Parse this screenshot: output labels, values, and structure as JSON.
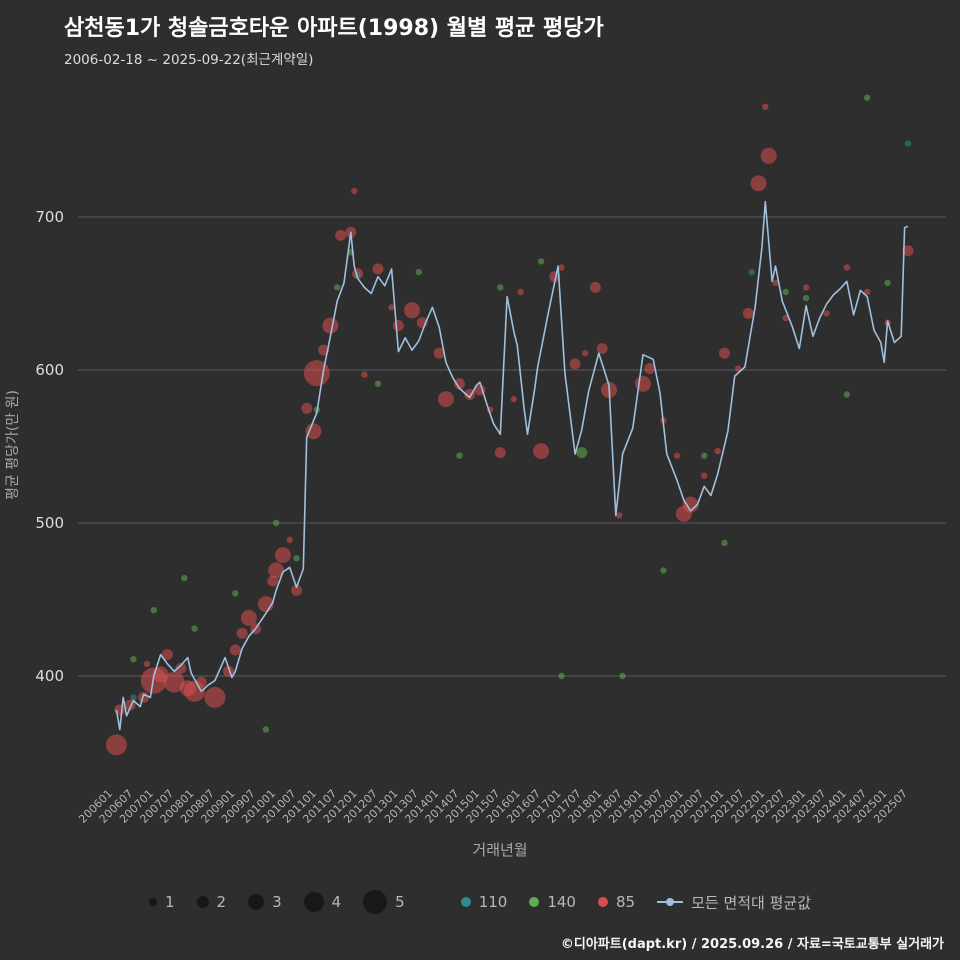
{
  "header": {
    "title": "삼천동1가 청솔금호타운 아파트(1998) 월별 평균 평당가",
    "subtitle": "2006-02-18 ~ 2025-09-22(최근계약일)"
  },
  "footer": {
    "text": "©디아파트(dapt.kr) / 2025.09.26 / 자료=국토교통부 실거래가"
  },
  "legend": {
    "series": [
      {
        "name": "110",
        "label": "110",
        "color": "#2e8b8b",
        "type": "dot"
      },
      {
        "name": "140",
        "label": "140",
        "color": "#5fae4f",
        "type": "dot"
      },
      {
        "name": "85",
        "label": "85",
        "color": "#d94f4f",
        "type": "dot"
      },
      {
        "name": "average",
        "label": "모든 면적대 평균값",
        "color": "#9fc0de",
        "type": "line"
      }
    ]
  },
  "chart_data": {
    "type": "scatter+line",
    "title": "삼천동1가 청솔금호타운 아파트(1998) 월별 평균 평당가",
    "xlabel": "거래년월",
    "ylabel": "평균 평당가(만 원)",
    "ylim": [
      340,
      790
    ],
    "yticks": [
      400,
      500,
      600,
      700
    ],
    "grid": true,
    "size_legend": [
      1,
      2,
      3,
      4,
      5
    ],
    "xticks": [
      "200601",
      "200607",
      "200701",
      "200707",
      "200801",
      "200807",
      "200901",
      "200907",
      "201001",
      "201007",
      "201101",
      "201107",
      "201201",
      "201207",
      "201301",
      "201307",
      "201401",
      "201407",
      "201501",
      "201507",
      "201601",
      "201607",
      "201701",
      "201707",
      "201801",
      "201807",
      "201901",
      "201907",
      "202001",
      "202007",
      "202101",
      "202107",
      "202201",
      "202207",
      "202301",
      "202307",
      "202401",
      "202407",
      "202501",
      "202507"
    ],
    "line_series": {
      "name": "모든 면적대 평균값",
      "color": "#9fc0de",
      "points": [
        [
          "200602",
          378
        ],
        [
          "200603",
          365
        ],
        [
          "200604",
          386
        ],
        [
          "200605",
          374
        ],
        [
          "200607",
          384
        ],
        [
          "200609",
          380
        ],
        [
          "200610",
          388
        ],
        [
          "200612",
          386
        ],
        [
          "200701",
          400
        ],
        [
          "200703",
          414
        ],
        [
          "200705",
          408
        ],
        [
          "200707",
          403
        ],
        [
          "200709",
          407
        ],
        [
          "200711",
          412
        ],
        [
          "200712",
          402
        ],
        [
          "200801",
          398
        ],
        [
          "200803",
          390
        ],
        [
          "200805",
          394
        ],
        [
          "200807",
          397
        ],
        [
          "200810",
          412
        ],
        [
          "200812",
          399
        ],
        [
          "200901",
          403
        ],
        [
          "200903",
          418
        ],
        [
          "200905",
          426
        ],
        [
          "200907",
          431
        ],
        [
          "200910",
          441
        ],
        [
          "200912",
          448
        ],
        [
          "201001",
          456
        ],
        [
          "201003",
          468
        ],
        [
          "201005",
          471
        ],
        [
          "201007",
          458
        ],
        [
          "201009",
          470
        ],
        [
          "201010",
          556
        ],
        [
          "201101",
          572
        ],
        [
          "201103",
          600
        ],
        [
          "201105",
          622
        ],
        [
          "201107",
          645
        ],
        [
          "201109",
          657
        ],
        [
          "201111",
          690
        ],
        [
          "201112",
          668
        ],
        [
          "201201",
          660
        ],
        [
          "201203",
          654
        ],
        [
          "201205",
          650
        ],
        [
          "201207",
          661
        ],
        [
          "201209",
          655
        ],
        [
          "201211",
          666
        ],
        [
          "201301",
          612
        ],
        [
          "201303",
          621
        ],
        [
          "201305",
          613
        ],
        [
          "201307",
          619
        ],
        [
          "201309",
          631
        ],
        [
          "201311",
          641
        ],
        [
          "201401",
          628
        ],
        [
          "201403",
          605
        ],
        [
          "201405",
          595
        ],
        [
          "201407",
          588
        ],
        [
          "201410",
          582
        ],
        [
          "201412",
          590
        ],
        [
          "201501",
          592
        ],
        [
          "201503",
          578
        ],
        [
          "201505",
          565
        ],
        [
          "201507",
          558
        ],
        [
          "201509",
          648
        ],
        [
          "201511",
          625
        ],
        [
          "201512",
          616
        ],
        [
          "201602",
          575
        ],
        [
          "201603",
          558
        ],
        [
          "201605",
          586
        ],
        [
          "201606",
          602
        ],
        [
          "201609",
          636
        ],
        [
          "201612",
          668
        ],
        [
          "201702",
          598
        ],
        [
          "201705",
          545
        ],
        [
          "201707",
          561
        ],
        [
          "201709",
          586
        ],
        [
          "201712",
          611
        ],
        [
          "201803",
          590
        ],
        [
          "201805",
          505
        ],
        [
          "201807",
          545
        ],
        [
          "201810",
          562
        ],
        [
          "201901",
          610
        ],
        [
          "201904",
          607
        ],
        [
          "201906",
          585
        ],
        [
          "201908",
          545
        ],
        [
          "201911",
          528
        ],
        [
          "202001",
          515
        ],
        [
          "202003",
          508
        ],
        [
          "202005",
          512
        ],
        [
          "202007",
          524
        ],
        [
          "202009",
          518
        ],
        [
          "202011",
          532
        ],
        [
          "202102",
          560
        ],
        [
          "202104",
          596
        ],
        [
          "202107",
          602
        ],
        [
          "202110",
          641
        ],
        [
          "202112",
          680
        ],
        [
          "202201",
          710
        ],
        [
          "202203",
          658
        ],
        [
          "202204",
          668
        ],
        [
          "202206",
          645
        ],
        [
          "202209",
          628
        ],
        [
          "202211",
          614
        ],
        [
          "202301",
          642
        ],
        [
          "202303",
          622
        ],
        [
          "202305",
          634
        ],
        [
          "202307",
          643
        ],
        [
          "202309",
          649
        ],
        [
          "202311",
          653
        ],
        [
          "202401",
          658
        ],
        [
          "202403",
          636
        ],
        [
          "202405",
          652
        ],
        [
          "202407",
          648
        ],
        [
          "202409",
          626
        ],
        [
          "202411",
          618
        ],
        [
          "202412",
          605
        ],
        [
          "202501",
          632
        ],
        [
          "202503",
          618
        ],
        [
          "202505",
          622
        ],
        [
          "202506",
          693
        ],
        [
          "202507",
          694
        ]
      ]
    },
    "bubble_series": [
      {
        "name": "85",
        "color": "#d94f4f",
        "points": [
          [
            "200602",
            355,
            4
          ],
          [
            "200603",
            378,
            2
          ],
          [
            "200606",
            381,
            2
          ],
          [
            "200610",
            386,
            2
          ],
          [
            "200611",
            408,
            1
          ],
          [
            "200701",
            397,
            5
          ],
          [
            "200703",
            401,
            3
          ],
          [
            "200705",
            414,
            2
          ],
          [
            "200707",
            396,
            4
          ],
          [
            "200709",
            405,
            2
          ],
          [
            "200711",
            392,
            3
          ],
          [
            "200801",
            390,
            4
          ],
          [
            "200803",
            396,
            2
          ],
          [
            "200807",
            386,
            4
          ],
          [
            "200811",
            403,
            2
          ],
          [
            "200901",
            417,
            2
          ],
          [
            "200903",
            428,
            2
          ],
          [
            "200905",
            438,
            3
          ],
          [
            "200907",
            431,
            2
          ],
          [
            "200910",
            447,
            3
          ],
          [
            "200912",
            462,
            2
          ],
          [
            "201001",
            469,
            3
          ],
          [
            "201003",
            479,
            3
          ],
          [
            "201005",
            489,
            1
          ],
          [
            "201007",
            456,
            2
          ],
          [
            "201010",
            575,
            2
          ],
          [
            "201012",
            560,
            3
          ],
          [
            "201101",
            598,
            5
          ],
          [
            "201103",
            613,
            2
          ],
          [
            "201105",
            629,
            3
          ],
          [
            "201108",
            688,
            2
          ],
          [
            "201111",
            690,
            2
          ],
          [
            "201112",
            717,
            1
          ],
          [
            "201201",
            663,
            2
          ],
          [
            "201203",
            597,
            1
          ],
          [
            "201207",
            666,
            2
          ],
          [
            "201211",
            641,
            1
          ],
          [
            "201301",
            629,
            2
          ],
          [
            "201305",
            639,
            3
          ],
          [
            "201308",
            631,
            2
          ],
          [
            "201401",
            611,
            2
          ],
          [
            "201403",
            581,
            3
          ],
          [
            "201407",
            591,
            2
          ],
          [
            "201410",
            584,
            2
          ],
          [
            "201501",
            587,
            2
          ],
          [
            "201504",
            574,
            1
          ],
          [
            "201507",
            546,
            2
          ],
          [
            "201511",
            581,
            1
          ],
          [
            "201601",
            651,
            1
          ],
          [
            "201607",
            547,
            3
          ],
          [
            "201611",
            661,
            2
          ],
          [
            "201701",
            667,
            1
          ],
          [
            "201705",
            604,
            2
          ],
          [
            "201708",
            611,
            1
          ],
          [
            "201711",
            654,
            2
          ],
          [
            "201801",
            614,
            2
          ],
          [
            "201803",
            587,
            3
          ],
          [
            "201806",
            505,
            1
          ],
          [
            "201901",
            591,
            3
          ],
          [
            "201903",
            601,
            2
          ],
          [
            "201907",
            567,
            1
          ],
          [
            "201911",
            544,
            1
          ],
          [
            "202001",
            506,
            3
          ],
          [
            "202003",
            512,
            3
          ],
          [
            "202007",
            531,
            1
          ],
          [
            "202011",
            547,
            1
          ],
          [
            "202101",
            611,
            2
          ],
          [
            "202105",
            601,
            1
          ],
          [
            "202108",
            637,
            2
          ],
          [
            "202111",
            722,
            3
          ],
          [
            "202201",
            772,
            1
          ],
          [
            "202202",
            740,
            3
          ],
          [
            "202204",
            657,
            1
          ],
          [
            "202207",
            634,
            1
          ],
          [
            "202301",
            654,
            1
          ],
          [
            "202307",
            637,
            1
          ],
          [
            "202401",
            667,
            1
          ],
          [
            "202407",
            651,
            1
          ],
          [
            "202501",
            631,
            1
          ],
          [
            "202507",
            678,
            2
          ]
        ]
      },
      {
        "name": "140",
        "color": "#5fae4f",
        "points": [
          [
            "200607",
            411,
            1
          ],
          [
            "200701",
            443,
            1
          ],
          [
            "200710",
            464,
            1
          ],
          [
            "200801",
            431,
            1
          ],
          [
            "200901",
            454,
            1
          ],
          [
            "200910",
            365,
            1
          ],
          [
            "201001",
            500,
            1
          ],
          [
            "201007",
            477,
            1
          ],
          [
            "201101",
            574,
            1
          ],
          [
            "201107",
            654,
            1
          ],
          [
            "201111",
            677,
            1
          ],
          [
            "201207",
            591,
            1
          ],
          [
            "201307",
            664,
            1
          ],
          [
            "201407",
            544,
            1
          ],
          [
            "201507",
            654,
            1
          ],
          [
            "201607",
            671,
            1
          ],
          [
            "201701",
            400,
            1
          ],
          [
            "201707",
            546,
            2
          ],
          [
            "201807",
            400,
            1
          ],
          [
            "201907",
            469,
            1
          ],
          [
            "202007",
            544,
            1
          ],
          [
            "202101",
            487,
            1
          ],
          [
            "202207",
            651,
            1
          ],
          [
            "202301",
            647,
            1
          ],
          [
            "202401",
            584,
            1
          ],
          [
            "202407",
            778,
            1
          ],
          [
            "202501",
            657,
            1
          ]
        ]
      },
      {
        "name": "110",
        "color": "#2e8b8b",
        "points": [
          [
            "200607",
            386,
            1
          ],
          [
            "201201",
            662,
            1
          ],
          [
            "202109",
            664,
            1
          ],
          [
            "202507",
            748,
            1
          ]
        ]
      }
    ]
  }
}
